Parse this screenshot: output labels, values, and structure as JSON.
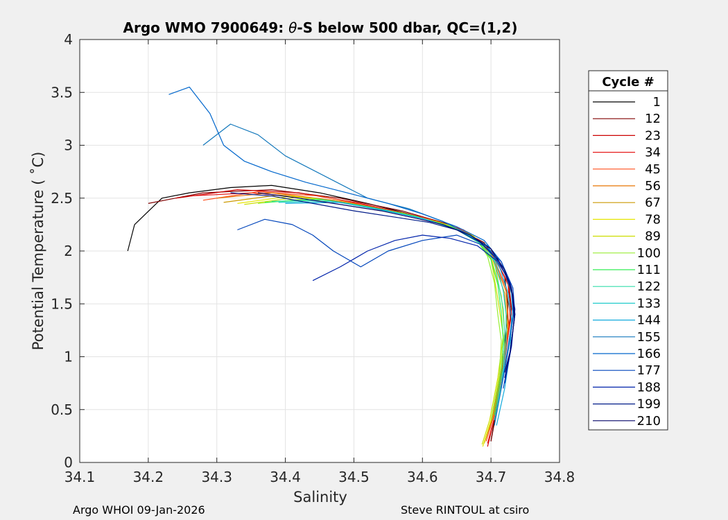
{
  "chart_data": {
    "type": "line",
    "title_prefix": "Argo WMO 7900649: ",
    "title_symbol": "θ",
    "title_suffix": "-S below 500 dbar,  QC=(1,2)",
    "xlabel": "Salinity",
    "ylabel": "Potential Temperature ( ˚C)",
    "xlim": [
      34.1,
      34.8
    ],
    "ylim": [
      0,
      4
    ],
    "x_ticks": [
      "34.1",
      "34.2",
      "34.3",
      "34.4",
      "34.5",
      "34.6",
      "34.7",
      "34.8"
    ],
    "y_ticks": [
      "0",
      "0.5",
      "1",
      "1.5",
      "2",
      "2.5",
      "3",
      "3.5",
      "4"
    ],
    "grid": true,
    "legend_title": "Cycle #",
    "legend_position": "outside-right",
    "series": [
      {
        "name": "1",
        "color": "#000000",
        "salinity": [
          34.17,
          34.18,
          34.22,
          34.26,
          34.32,
          34.38,
          34.45,
          34.52,
          34.58,
          34.63,
          34.67,
          34.7,
          34.72,
          34.725,
          34.72,
          34.71,
          34.7
        ],
        "theta": [
          2.0,
          2.25,
          2.5,
          2.55,
          2.6,
          2.62,
          2.55,
          2.45,
          2.35,
          2.25,
          2.15,
          2.0,
          1.75,
          1.5,
          1.1,
          0.6,
          0.2
        ]
      },
      {
        "name": "12",
        "color": "#800000",
        "salinity": [
          34.2,
          34.28,
          34.38,
          34.48,
          34.57,
          34.64,
          34.69,
          34.725,
          34.73,
          34.72,
          34.71,
          34.7
        ],
        "theta": [
          2.45,
          2.55,
          2.58,
          2.5,
          2.38,
          2.25,
          2.08,
          1.75,
          1.45,
          1.05,
          0.55,
          0.2
        ]
      },
      {
        "name": "23",
        "color": "#cc0000",
        "salinity": [
          34.24,
          34.33,
          34.42,
          34.51,
          34.59,
          34.65,
          34.695,
          34.725,
          34.73,
          34.72,
          34.71,
          34.695
        ],
        "theta": [
          2.5,
          2.58,
          2.55,
          2.45,
          2.33,
          2.22,
          2.05,
          1.7,
          1.4,
          1.0,
          0.55,
          0.15
        ]
      },
      {
        "name": "34",
        "color": "#e61a1a",
        "salinity": [
          34.26,
          34.35,
          34.44,
          34.53,
          34.6,
          34.66,
          34.7,
          34.725,
          34.728,
          34.72,
          34.708,
          34.695
        ],
        "theta": [
          2.52,
          2.55,
          2.5,
          2.42,
          2.32,
          2.2,
          2.02,
          1.68,
          1.35,
          0.95,
          0.5,
          0.18
        ]
      },
      {
        "name": "45",
        "color": "#ff4d1a",
        "salinity": [
          34.28,
          34.36,
          34.45,
          34.54,
          34.61,
          34.665,
          34.7,
          34.722,
          34.726,
          34.718,
          34.706,
          34.693
        ],
        "theta": [
          2.48,
          2.56,
          2.52,
          2.4,
          2.3,
          2.18,
          2.0,
          1.65,
          1.3,
          0.9,
          0.48,
          0.2
        ]
      },
      {
        "name": "56",
        "color": "#e67300",
        "salinity": [
          34.3,
          34.38,
          34.47,
          34.55,
          34.62,
          34.67,
          34.7,
          34.722,
          34.725,
          34.716,
          34.704,
          34.692
        ],
        "theta": [
          2.5,
          2.55,
          2.48,
          2.38,
          2.28,
          2.16,
          1.98,
          1.62,
          1.28,
          0.88,
          0.45,
          0.22
        ]
      },
      {
        "name": "67",
        "color": "#cc9900",
        "salinity": [
          34.31,
          34.39,
          34.48,
          34.56,
          34.625,
          34.672,
          34.7,
          34.72,
          34.724,
          34.714,
          34.702,
          34.69
        ],
        "theta": [
          2.46,
          2.53,
          2.47,
          2.37,
          2.27,
          2.15,
          1.97,
          1.6,
          1.25,
          0.85,
          0.42,
          0.18
        ]
      },
      {
        "name": "78",
        "color": "#e6e600",
        "salinity": [
          34.33,
          34.41,
          34.49,
          34.57,
          34.63,
          34.675,
          34.7,
          34.715,
          34.72,
          34.712,
          34.7,
          34.688
        ],
        "theta": [
          2.45,
          2.52,
          2.45,
          2.36,
          2.26,
          2.14,
          1.95,
          1.58,
          1.22,
          0.82,
          0.4,
          0.15
        ]
      },
      {
        "name": "89",
        "color": "#ccdd00",
        "salinity": [
          34.34,
          34.42,
          34.5,
          34.575,
          34.635,
          34.678,
          34.7,
          34.71,
          34.718,
          34.71,
          34.698,
          34.687
        ],
        "theta": [
          2.44,
          2.51,
          2.44,
          2.35,
          2.25,
          2.12,
          1.93,
          1.55,
          1.2,
          0.8,
          0.4,
          0.17
        ]
      },
      {
        "name": "100",
        "color": "#99ee33",
        "salinity": [
          34.36,
          34.44,
          34.51,
          34.58,
          34.64,
          34.68,
          34.695,
          34.705,
          34.71,
          34.715,
          34.712,
          34.7
        ],
        "theta": [
          2.45,
          2.5,
          2.43,
          2.34,
          2.24,
          2.1,
          1.95,
          1.7,
          1.4,
          1.15,
          0.8,
          0.4
        ]
      },
      {
        "name": "111",
        "color": "#33ee55",
        "salinity": [
          34.37,
          34.45,
          34.52,
          34.59,
          34.645,
          34.682,
          34.7,
          34.71,
          34.715,
          34.718,
          34.715,
          34.705
        ],
        "theta": [
          2.46,
          2.49,
          2.42,
          2.33,
          2.22,
          2.08,
          1.92,
          1.68,
          1.42,
          1.15,
          0.85,
          0.45
        ]
      },
      {
        "name": "122",
        "color": "#33ddaa",
        "salinity": [
          34.38,
          34.46,
          34.53,
          34.6,
          34.65,
          34.685,
          34.705,
          34.712,
          34.718,
          34.72,
          34.718,
          34.708
        ],
        "theta": [
          2.47,
          2.48,
          2.4,
          2.31,
          2.2,
          2.07,
          1.9,
          1.66,
          1.45,
          1.2,
          0.9,
          0.5
        ]
      },
      {
        "name": "133",
        "color": "#22cccc",
        "salinity": [
          34.39,
          34.47,
          34.54,
          34.605,
          34.655,
          34.69,
          34.708,
          34.718,
          34.722,
          34.722,
          34.716,
          34.705
        ],
        "theta": [
          2.46,
          2.47,
          2.39,
          2.3,
          2.19,
          2.06,
          1.88,
          1.62,
          1.4,
          1.1,
          0.75,
          0.4
        ]
      },
      {
        "name": "144",
        "color": "#11aadd",
        "salinity": [
          34.4,
          34.48,
          34.55,
          34.61,
          34.66,
          34.695,
          34.712,
          34.725,
          34.73,
          34.728,
          34.72,
          34.708
        ],
        "theta": [
          2.45,
          2.46,
          2.38,
          2.29,
          2.18,
          2.05,
          1.86,
          1.6,
          1.35,
          1.05,
          0.7,
          0.35
        ]
      },
      {
        "name": "155",
        "color": "#1177bb",
        "salinity": [
          34.28,
          34.32,
          34.36,
          34.4,
          34.46,
          34.52,
          34.58,
          34.63,
          34.67,
          34.7,
          34.72,
          34.73,
          34.732,
          34.725,
          34.715,
          34.705
        ],
        "theta": [
          3.0,
          3.2,
          3.1,
          2.9,
          2.7,
          2.5,
          2.4,
          2.28,
          2.15,
          2.0,
          1.8,
          1.6,
          1.4,
          1.1,
          0.7,
          0.35
        ]
      },
      {
        "name": "166",
        "color": "#0066cc",
        "salinity": [
          34.23,
          34.26,
          34.29,
          34.31,
          34.34,
          34.38,
          34.43,
          34.49,
          34.55,
          34.6,
          34.65,
          34.69,
          34.715,
          34.73,
          34.733,
          34.725,
          34.715
        ],
        "theta": [
          3.48,
          3.55,
          3.3,
          3.0,
          2.85,
          2.75,
          2.65,
          2.55,
          2.45,
          2.35,
          2.23,
          2.1,
          1.9,
          1.65,
          1.4,
          1.05,
          0.7
        ]
      },
      {
        "name": "177",
        "color": "#0044bb",
        "salinity": [
          34.33,
          34.37,
          34.41,
          34.44,
          34.47,
          34.51,
          34.55,
          34.6,
          34.65,
          34.69,
          34.715,
          34.732,
          34.735,
          34.728,
          34.718
        ],
        "theta": [
          2.2,
          2.3,
          2.25,
          2.15,
          2.0,
          1.85,
          2.0,
          2.1,
          2.15,
          2.05,
          1.9,
          1.65,
          1.4,
          1.05,
          0.7
        ]
      },
      {
        "name": "188",
        "color": "#0022aa",
        "salinity": [
          34.44,
          34.48,
          34.52,
          34.56,
          34.6,
          34.64,
          34.68,
          34.71,
          34.728,
          34.735,
          34.73,
          34.72
        ],
        "theta": [
          1.72,
          1.85,
          2.0,
          2.1,
          2.15,
          2.12,
          2.05,
          1.9,
          1.7,
          1.45,
          1.1,
          0.75
        ]
      },
      {
        "name": "199",
        "color": "#001a88",
        "salinity": [
          34.32,
          34.38,
          34.44,
          34.5,
          34.56,
          34.61,
          34.65,
          34.685,
          34.712,
          34.73,
          34.735,
          34.728,
          34.72
        ],
        "theta": [
          2.55,
          2.52,
          2.45,
          2.38,
          2.32,
          2.27,
          2.2,
          2.08,
          1.9,
          1.65,
          1.4,
          1.05,
          0.8
        ]
      },
      {
        "name": "210",
        "color": "#000066",
        "salinity": [
          34.36,
          34.42,
          34.48,
          34.54,
          34.59,
          34.63,
          34.67,
          34.7,
          34.72,
          34.732,
          34.734,
          34.728,
          34.72
        ],
        "theta": [
          2.55,
          2.5,
          2.44,
          2.38,
          2.31,
          2.25,
          2.15,
          2.02,
          1.82,
          1.58,
          1.35,
          1.05,
          0.85
        ]
      }
    ]
  },
  "footer": {
    "left": "Argo WHOI 09-Jan-2026",
    "right": "Steve RINTOUL at csiro"
  }
}
